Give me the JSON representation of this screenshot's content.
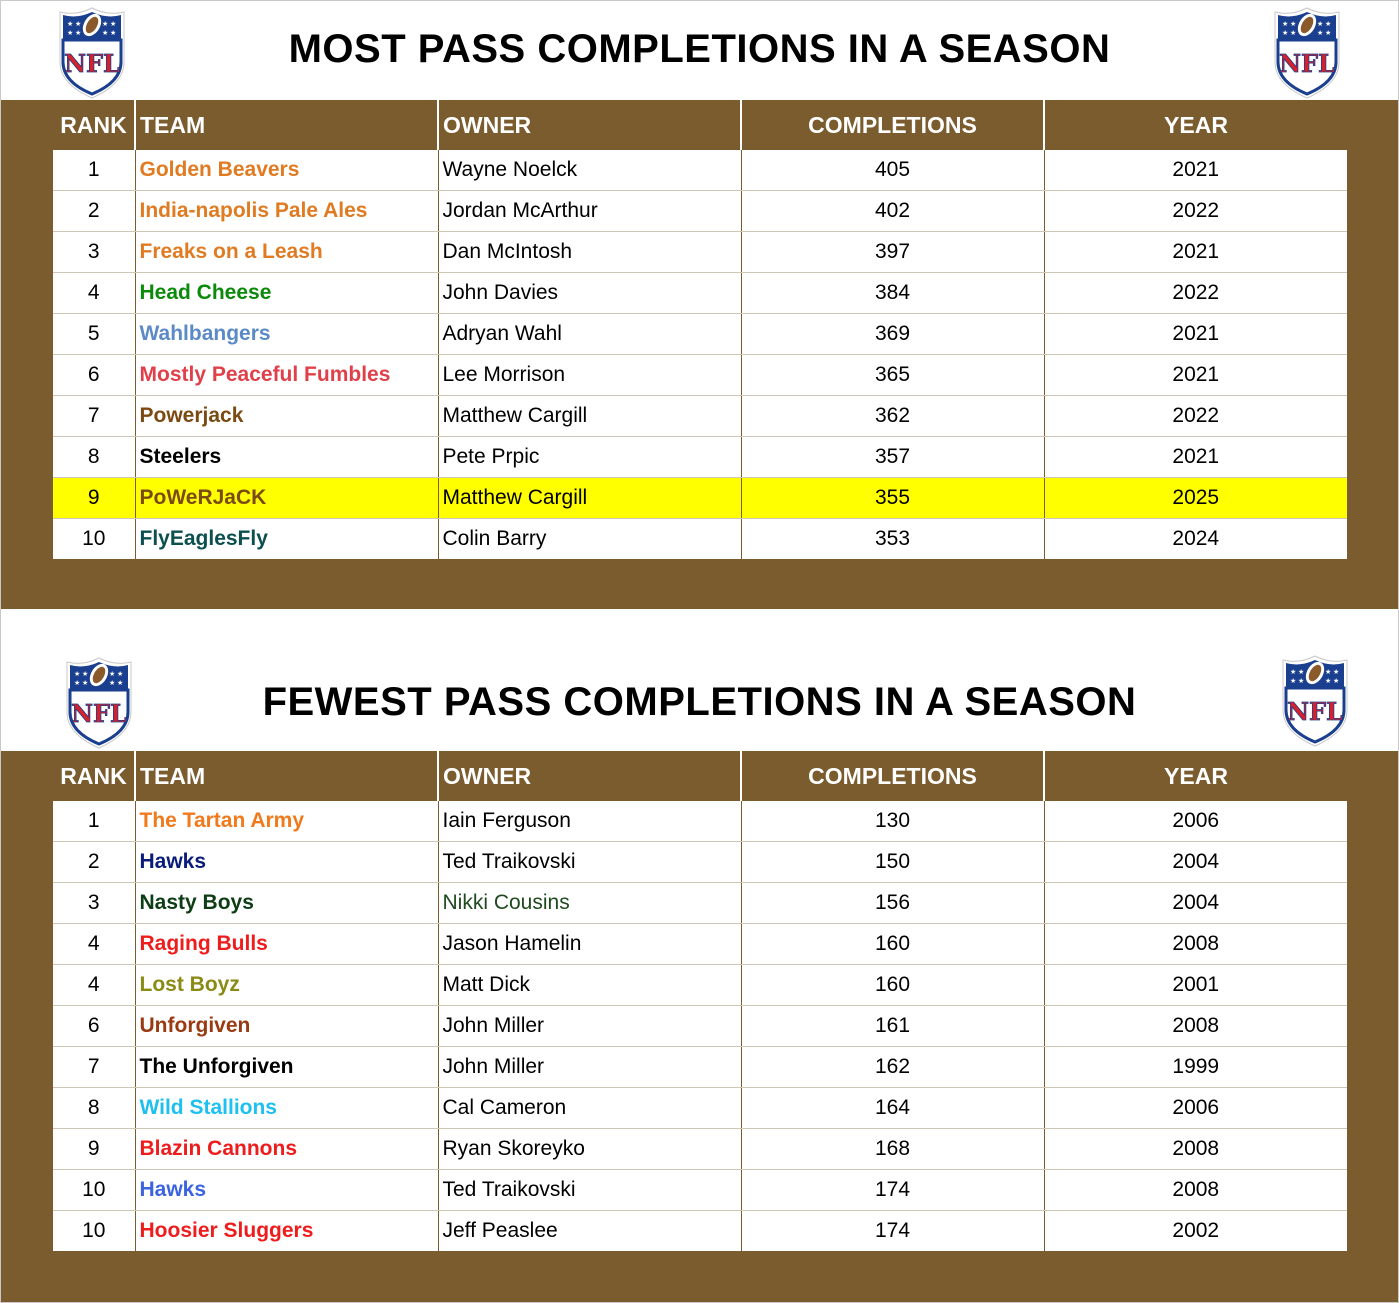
{
  "logo_text": "NFL",
  "colors": {
    "panel": "#7b5c2e",
    "highlight": "#ffff00"
  },
  "headers": {
    "rank": "RANK",
    "team": "TEAM",
    "owner": "OWNER",
    "completions": "COMPLETIONS",
    "year": "YEAR"
  },
  "most": {
    "title": "MOST PASS COMPLETIONS IN A SEASON",
    "rows": [
      {
        "rank": "1",
        "team": "Golden Beavers",
        "team_color": "#e07b22",
        "owner": "Wayne Noelck",
        "owner_color": "#000000",
        "completions": "405",
        "year": "2021",
        "highlight": false
      },
      {
        "rank": "2",
        "team": "India-napolis Pale Ales",
        "team_color": "#e07b22",
        "owner": "Jordan McArthur",
        "owner_color": "#000000",
        "completions": "402",
        "year": "2022",
        "highlight": false
      },
      {
        "rank": "3",
        "team": "Freaks on a Leash",
        "team_color": "#e07b22",
        "owner": "Dan McIntosh",
        "owner_color": "#000000",
        "completions": "397",
        "year": "2021",
        "highlight": false
      },
      {
        "rank": "4",
        "team": "Head Cheese",
        "team_color": "#0c8a0c",
        "owner": "John Davies",
        "owner_color": "#000000",
        "completions": "384",
        "year": "2022",
        "highlight": false
      },
      {
        "rank": "5",
        "team": "Wahlbangers",
        "team_color": "#5b8ac6",
        "owner": "Adryan Wahl",
        "owner_color": "#000000",
        "completions": "369",
        "year": "2021",
        "highlight": false
      },
      {
        "rank": "6",
        "team": "Mostly Peaceful Fumbles",
        "team_color": "#e0404a",
        "owner": "Lee Morrison",
        "owner_color": "#000000",
        "completions": "365",
        "year": "2021",
        "highlight": false
      },
      {
        "rank": "7",
        "team": "Powerjack",
        "team_color": "#7b4a12",
        "owner": "Matthew Cargill",
        "owner_color": "#000000",
        "completions": "362",
        "year": "2022",
        "highlight": false
      },
      {
        "rank": "8",
        "team": "Steelers",
        "team_color": "#000000",
        "owner": "Pete Prpic",
        "owner_color": "#000000",
        "completions": "357",
        "year": "2021",
        "highlight": false
      },
      {
        "rank": "9",
        "team": "PoWeRJaCK",
        "team_color": "#7b4a12",
        "owner": "Matthew Cargill",
        "owner_color": "#000000",
        "completions": "355",
        "year": "2025",
        "highlight": true
      },
      {
        "rank": "10",
        "team": "FlyEaglesFly",
        "team_color": "#0b4f4f",
        "owner": "Colin Barry",
        "owner_color": "#000000",
        "completions": "353",
        "year": "2024",
        "highlight": false
      }
    ]
  },
  "fewest": {
    "title": "FEWEST PASS COMPLETIONS IN A SEASON",
    "rows": [
      {
        "rank": "1",
        "team": "The Tartan Army",
        "team_color": "#f07a1c",
        "owner": "Iain Ferguson",
        "owner_color": "#000000",
        "completions": "130",
        "year": "2006",
        "highlight": false
      },
      {
        "rank": "2",
        "team": "Hawks",
        "team_color": "#0a1c7a",
        "owner": "Ted Traikovski",
        "owner_color": "#000000",
        "completions": "150",
        "year": "2004",
        "highlight": false
      },
      {
        "rank": "3",
        "team": "Nasty Boys",
        "team_color": "#0c3d14",
        "owner": "Nikki Cousins",
        "owner_color": "#1f4a1f",
        "completions": "156",
        "year": "2004",
        "highlight": false
      },
      {
        "rank": "4",
        "team": "Raging Bulls",
        "team_color": "#ee1c1c",
        "owner": "Jason Hamelin",
        "owner_color": "#000000",
        "completions": "160",
        "year": "2008",
        "highlight": false
      },
      {
        "rank": "4",
        "team": "Lost Boyz",
        "team_color": "#8a8a14",
        "owner": "Matt Dick",
        "owner_color": "#000000",
        "completions": "160",
        "year": "2001",
        "highlight": false
      },
      {
        "rank": "6",
        "team": "Unforgiven",
        "team_color": "#9a3a12",
        "owner": "John Miller",
        "owner_color": "#000000",
        "completions": "161",
        "year": "2008",
        "highlight": false
      },
      {
        "rank": "7",
        "team": "The Unforgiven",
        "team_color": "#000000",
        "owner": "John Miller",
        "owner_color": "#000000",
        "completions": "162",
        "year": "1999",
        "highlight": false
      },
      {
        "rank": "8",
        "team": "Wild Stallions",
        "team_color": "#1ec0f0",
        "owner": "Cal Cameron",
        "owner_color": "#000000",
        "completions": "164",
        "year": "2006",
        "highlight": false
      },
      {
        "rank": "9",
        "team": "Blazin Cannons",
        "team_color": "#ee1c1c",
        "owner": "Ryan Skoreyko",
        "owner_color": "#000000",
        "completions": "168",
        "year": "2008",
        "highlight": false
      },
      {
        "rank": "10",
        "team": "Hawks",
        "team_color": "#3a64e0",
        "owner": "Ted Traikovski",
        "owner_color": "#000000",
        "completions": "174",
        "year": "2008",
        "highlight": false
      },
      {
        "rank": "10",
        "team": "Hoosier Sluggers",
        "team_color": "#ee1c1c",
        "owner": "Jeff Peaslee",
        "owner_color": "#000000",
        "completions": "174",
        "year": "2002",
        "highlight": false
      }
    ]
  }
}
